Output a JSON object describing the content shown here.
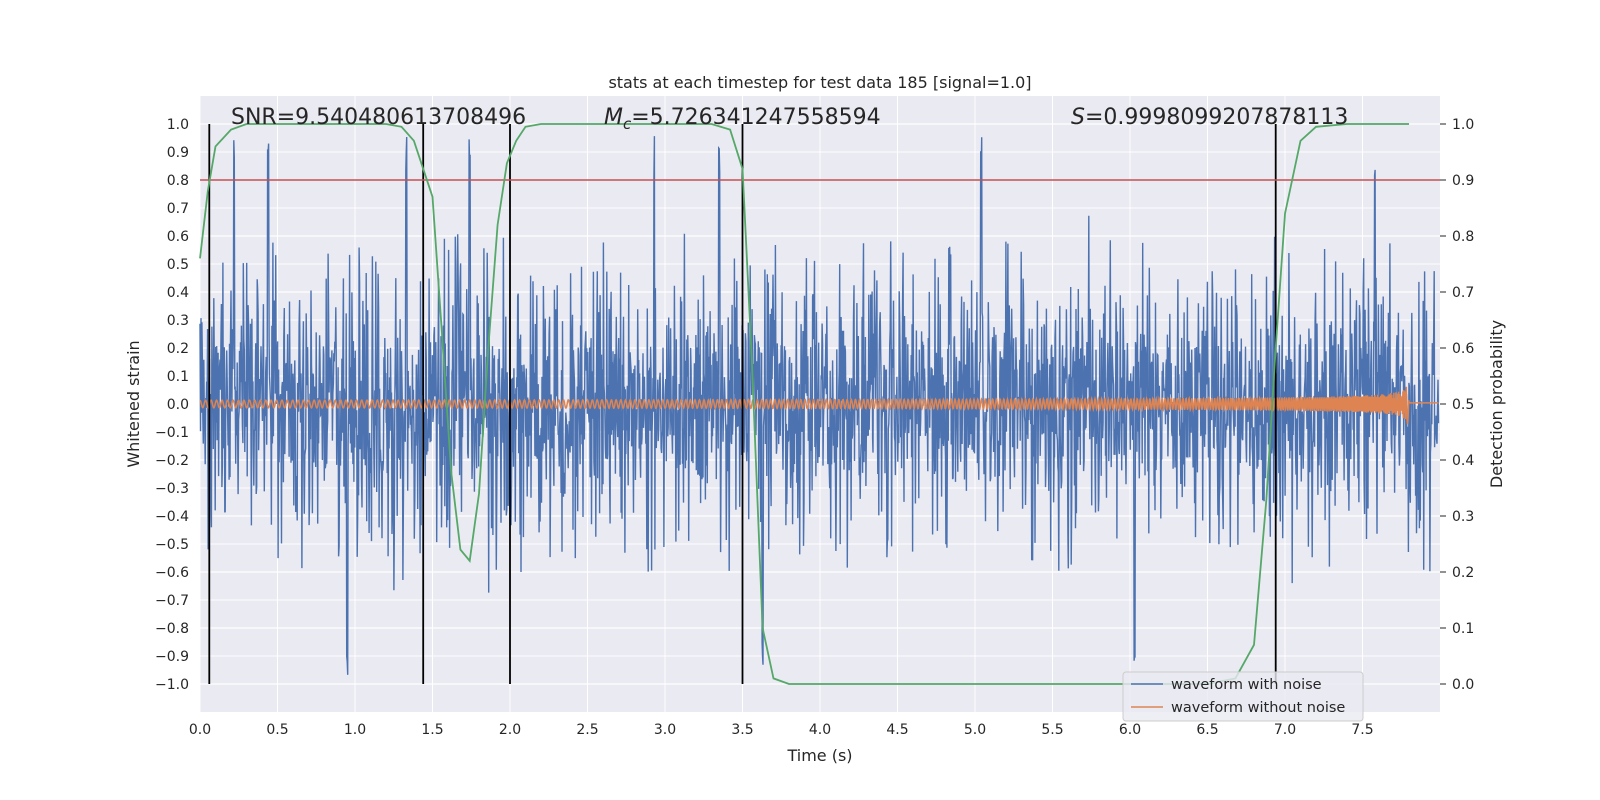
{
  "chart_data": {
    "type": "line",
    "title": "stats at each timestep for test data 185 [signal=1.0]",
    "xlabel": "Time (s)",
    "ylabel": "Whitened strain",
    "y2label": "Detection probability",
    "xlim": [
      0.0,
      8.0
    ],
    "ylim": [
      -1.1,
      1.1
    ],
    "y2lim": [
      -0.05,
      1.05
    ],
    "xticks": [
      "0.0",
      "0.5",
      "1.0",
      "1.5",
      "2.0",
      "2.5",
      "3.0",
      "3.5",
      "4.0",
      "4.5",
      "5.0",
      "5.5",
      "6.0",
      "6.5",
      "7.0",
      "7.5"
    ],
    "yticks": [
      "1.0",
      "0.9",
      "0.8",
      "0.7",
      "0.6",
      "0.5",
      "0.4",
      "0.3",
      "0.2",
      "0.1",
      "0.0",
      "-0.1",
      "-0.2",
      "-0.3",
      "-0.4",
      "-0.5",
      "-0.6",
      "-0.7",
      "-0.8",
      "-0.9",
      "-1.0"
    ],
    "y2ticks": [
      "1.0",
      "0.9",
      "0.8",
      "0.7",
      "0.6",
      "0.5",
      "0.4",
      "0.3",
      "0.2",
      "0.1",
      "0.0"
    ],
    "grid": true,
    "legend_position": "lower-right",
    "annotations": {
      "snr": "SNR=9.540480613708496",
      "mc_symbol": "M",
      "mc_sub": "c",
      "mc_value": "=5.726341247558594",
      "s_symbol": "S",
      "s_value": "=0.9998099207878113"
    },
    "threshold_line": {
      "axis": "y2",
      "value": 0.9,
      "color": "#c44e52"
    },
    "vertical_markers": [
      0.06,
      1.44,
      2.0,
      3.5,
      6.94
    ],
    "series": [
      {
        "name": "waveform with noise",
        "color": "#4c72b0",
        "description_values": {
          "envelope_min": -1.0,
          "envelope_max": 0.97,
          "spikes_up_at": [
            0.22,
            0.44,
            1.33,
            1.74,
            2.93,
            3.35,
            5.04,
            7.58
          ],
          "spikes_down_at": [
            0.95,
            3.63,
            6.03
          ]
        }
      },
      {
        "name": "waveform without noise",
        "color": "#dd8452",
        "description_values": {
          "start_amplitude": 0.015,
          "peak_amplitude": 0.21,
          "merger_time": 7.8
        }
      },
      {
        "name": "",
        "color": "#55a868",
        "axis": "y2",
        "x": [
          0.0,
          0.05,
          0.1,
          0.2,
          0.3,
          0.4,
          0.6,
          0.8,
          1.0,
          1.2,
          1.3,
          1.38,
          1.44,
          1.5,
          1.56,
          1.62,
          1.68,
          1.74,
          1.8,
          1.86,
          1.92,
          1.98,
          2.04,
          2.1,
          2.2,
          2.4,
          3.0,
          3.3,
          3.42,
          3.5,
          3.56,
          3.63,
          3.7,
          3.8,
          4.2,
          5.0,
          6.0,
          6.5,
          6.68,
          6.8,
          6.88,
          6.94,
          7.0,
          7.1,
          7.2,
          7.4,
          7.8
        ],
        "values": [
          0.76,
          0.88,
          0.96,
          0.99,
          1.0,
          1.0,
          1.0,
          1.0,
          1.0,
          1.0,
          0.995,
          0.97,
          0.92,
          0.87,
          0.63,
          0.38,
          0.24,
          0.22,
          0.34,
          0.6,
          0.82,
          0.93,
          0.97,
          0.995,
          1.0,
          1.0,
          1.0,
          1.0,
          0.99,
          0.92,
          0.58,
          0.1,
          0.01,
          0.0,
          0.0,
          0.0,
          0.0,
          0.0,
          0.01,
          0.07,
          0.33,
          0.6,
          0.84,
          0.97,
          0.995,
          1.0,
          1.0
        ]
      }
    ]
  }
}
